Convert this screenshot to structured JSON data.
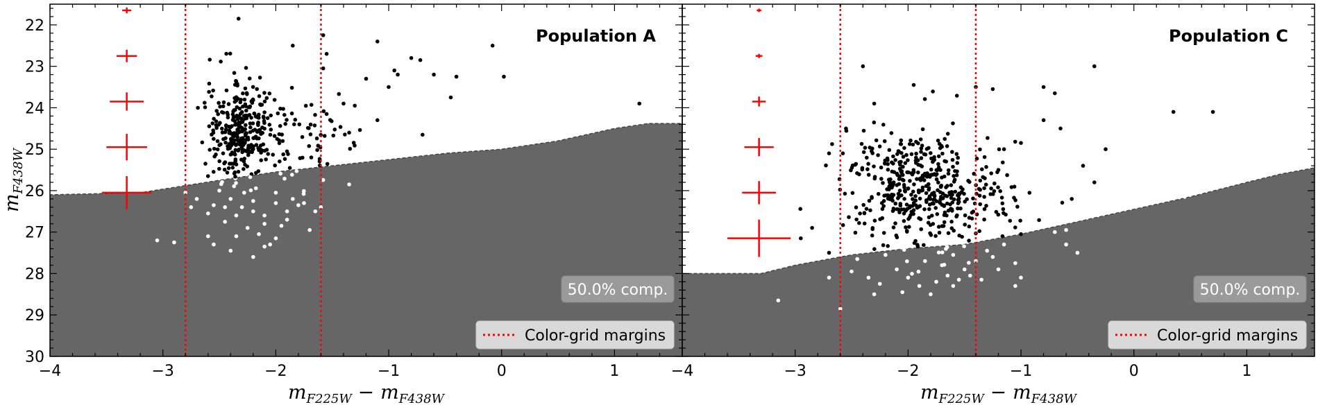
{
  "chart_data": [
    {
      "type": "scatter",
      "title": "Population A",
      "xlabel_main": "m",
      "xlabel_sub": "F225W",
      "xlabel_minus": " − ",
      "xlabel_main2": "m",
      "xlabel_sub2": "F438W",
      "ylabel_main": "m",
      "ylabel_sub": "F438W",
      "xlim": [
        -4,
        1.6
      ],
      "ylim": [
        30,
        21.5
      ],
      "xticks": [
        -4,
        -3,
        -2,
        -1,
        0,
        1
      ],
      "xtick_labels": [
        "−4",
        "−3",
        "−2",
        "−1",
        "0",
        "1"
      ],
      "yticks": [
        22,
        23,
        24,
        25,
        26,
        27,
        28,
        29,
        30
      ],
      "ytick_labels": [
        "22",
        "23",
        "24",
        "25",
        "26",
        "27",
        "28",
        "29",
        "30"
      ],
      "color_grid_margins": [
        -2.8,
        -1.6
      ],
      "completeness_label": "50.0% comp.",
      "legend_label": "Color-grid margins",
      "completeness_curve": [
        [
          -4,
          26.1
        ],
        [
          -3.2,
          26.05
        ],
        [
          -2.5,
          25.75
        ],
        [
          -2,
          25.55
        ],
        [
          -1.5,
          25.4
        ],
        [
          -1,
          25.25
        ],
        [
          -0.5,
          25.1
        ],
        [
          0,
          25.0
        ],
        [
          0.5,
          24.8
        ],
        [
          1.0,
          24.5
        ],
        [
          1.3,
          24.38
        ],
        [
          1.6,
          24.38
        ]
      ],
      "error_bars": [
        {
          "x": -3.32,
          "y": 21.65,
          "xerr": 0.04,
          "yerr": 0.07
        },
        {
          "x": -3.32,
          "y": 22.75,
          "xerr": 0.09,
          "yerr": 0.15
        },
        {
          "x": -3.32,
          "y": 23.85,
          "xerr": 0.15,
          "yerr": 0.22
        },
        {
          "x": -3.32,
          "y": 24.95,
          "xerr": 0.18,
          "yerr": 0.32
        },
        {
          "x": -3.32,
          "y": 26.05,
          "xerr": 0.22,
          "yerr": 0.4
        }
      ],
      "cluster_core": {
        "center": [
          -2.32,
          24.55
        ],
        "spread": [
          0.14,
          0.6
        ],
        "n": 300
      },
      "cluster_tail": {
        "center": [
          -1.9,
          24.7
        ],
        "spread": [
          0.28,
          0.55
        ],
        "n": 90
      },
      "extra_points_above": [
        [
          -2.33,
          21.85
        ],
        [
          -1.85,
          22.5
        ],
        [
          -1.1,
          22.4
        ],
        [
          -0.72,
          22.85
        ],
        [
          -0.08,
          22.5
        ],
        [
          -0.8,
          22.8
        ],
        [
          -0.95,
          23.1
        ],
        [
          -1.2,
          23.3
        ],
        [
          -1.0,
          23.5
        ],
        [
          -0.92,
          23.2
        ],
        [
          -0.6,
          23.2
        ],
        [
          -0.4,
          23.25
        ],
        [
          0.02,
          23.25
        ],
        [
          -0.45,
          23.75
        ],
        [
          -0.7,
          24.65
        ],
        [
          1.22,
          23.9
        ],
        [
          -1.55,
          22.7
        ],
        [
          -1.58,
          22.25
        ],
        [
          -1.58,
          23.05
        ],
        [
          -1.4,
          23.9
        ],
        [
          -1.3,
          23.95
        ],
        [
          -1.1,
          24.3
        ],
        [
          -1.35,
          24.6
        ],
        [
          -1.55,
          24.15
        ]
      ],
      "faint_points": [
        [
          -2.5,
          26.0
        ],
        [
          -2.4,
          26.2
        ],
        [
          -2.3,
          26.4
        ],
        [
          -2.2,
          26.25
        ],
        [
          -2.1,
          26.6
        ],
        [
          -2.0,
          26.3
        ],
        [
          -1.9,
          26.5
        ],
        [
          -1.8,
          26.35
        ],
        [
          -2.25,
          26.9
        ],
        [
          -2.15,
          27.05
        ],
        [
          -2.05,
          27.3
        ],
        [
          -2.35,
          27.1
        ],
        [
          -2.6,
          26.55
        ],
        [
          -2.7,
          26.2
        ],
        [
          -2.9,
          27.25
        ],
        [
          -3.05,
          27.2
        ],
        [
          -2.55,
          27.3
        ],
        [
          -2.2,
          27.6
        ],
        [
          -2.1,
          27.35
        ],
        [
          -1.95,
          26.85
        ],
        [
          -1.7,
          26.95
        ],
        [
          -1.6,
          26.4
        ],
        [
          -1.35,
          25.85
        ],
        [
          -2.45,
          26.75
        ],
        [
          -2.28,
          26.05
        ],
        [
          -2.0,
          26.05
        ],
        [
          -1.85,
          26.2
        ],
        [
          -2.6,
          27.1
        ],
        [
          -2.35,
          26.6
        ],
        [
          -1.75,
          26.3
        ],
        [
          -2.1,
          26.8
        ],
        [
          -2.75,
          26.4
        ],
        [
          -2.4,
          27.45
        ],
        [
          -2.0,
          27.15
        ],
        [
          -1.9,
          26.7
        ],
        [
          -2.55,
          26.35
        ],
        [
          -1.65,
          26.5
        ],
        [
          -2.2,
          26.5
        ],
        [
          -2.45,
          26.4
        ],
        [
          -2.8,
          26.05
        ]
      ]
    },
    {
      "type": "scatter",
      "title": "Population C",
      "xlabel_main": "m",
      "xlabel_sub": "F225W",
      "xlabel_minus": " − ",
      "xlabel_main2": "m",
      "xlabel_sub2": "F438W",
      "xlim": [
        -4,
        1.6
      ],
      "ylim": [
        30,
        21.5
      ],
      "xticks": [
        -4,
        -3,
        -2,
        -1,
        0,
        1
      ],
      "xtick_labels": [
        "−4",
        "−3",
        "−2",
        "−1",
        "0",
        "1"
      ],
      "color_grid_margins": [
        -2.6,
        -1.4
      ],
      "completeness_label": "50.0% comp.",
      "legend_label": "Color-grid margins",
      "completeness_curve": [
        [
          -4,
          28.0
        ],
        [
          -3.3,
          28.0
        ],
        [
          -3.0,
          27.8
        ],
        [
          -2.5,
          27.55
        ],
        [
          -2,
          27.4
        ],
        [
          -1.5,
          27.3
        ],
        [
          -1,
          27.05
        ],
        [
          -0.5,
          26.75
        ],
        [
          0,
          26.45
        ],
        [
          0.5,
          26.15
        ],
        [
          1.0,
          25.8
        ],
        [
          1.3,
          25.6
        ],
        [
          1.6,
          25.45
        ]
      ],
      "error_bars": [
        {
          "x": -3.32,
          "y": 21.65,
          "xerr": 0.02,
          "yerr": 0.04
        },
        {
          "x": -3.32,
          "y": 22.75,
          "xerr": 0.03,
          "yerr": 0.05
        },
        {
          "x": -3.32,
          "y": 23.85,
          "xerr": 0.06,
          "yerr": 0.12
        },
        {
          "x": -3.32,
          "y": 24.95,
          "xerr": 0.13,
          "yerr": 0.22
        },
        {
          "x": -3.32,
          "y": 26.05,
          "xerr": 0.15,
          "yerr": 0.28
        },
        {
          "x": -3.32,
          "y": 27.15,
          "xerr": 0.28,
          "yerr": 0.45
        }
      ],
      "cluster_core": {
        "center": [
          -1.98,
          25.95
        ],
        "spread": [
          0.28,
          0.7
        ],
        "n": 380
      },
      "cluster_tail": {
        "center": [
          -1.5,
          26.2
        ],
        "spread": [
          0.3,
          0.7
        ],
        "n": 110
      },
      "extra_points_above": [
        [
          -2.4,
          23.0
        ],
        [
          -1.95,
          23.45
        ],
        [
          -1.4,
          23.5
        ],
        [
          -1.25,
          23.55
        ],
        [
          -0.8,
          23.5
        ],
        [
          -0.7,
          23.65
        ],
        [
          -0.35,
          23.0
        ],
        [
          -0.8,
          24.3
        ],
        [
          -0.65,
          24.5
        ],
        [
          -0.25,
          25.0
        ],
        [
          0.35,
          24.1
        ],
        [
          0.7,
          24.1
        ],
        [
          -0.45,
          25.4
        ],
        [
          -0.35,
          25.8
        ],
        [
          -0.55,
          26.2
        ],
        [
          -1.0,
          24.85
        ],
        [
          -1.15,
          25.0
        ],
        [
          -1.2,
          25.5
        ],
        [
          -2.3,
          23.9
        ],
        [
          -2.55,
          24.5
        ],
        [
          -2.7,
          25.1
        ],
        [
          -2.85,
          26.9
        ],
        [
          -2.95,
          27.15
        ],
        [
          -2.7,
          27.5
        ],
        [
          -0.6,
          27.3
        ],
        [
          -0.5,
          27.5
        ],
        [
          -1.0,
          27.05
        ]
      ],
      "faint_points": [
        [
          -3.15,
          28.65
        ],
        [
          -2.6,
          28.85
        ],
        [
          -2.35,
          28.1
        ],
        [
          -2.3,
          28.5
        ],
        [
          -2.1,
          27.9
        ],
        [
          -2.0,
          28.1
        ],
        [
          -1.9,
          28.3
        ],
        [
          -1.85,
          27.7
        ],
        [
          -1.75,
          28.2
        ],
        [
          -1.7,
          27.8
        ],
        [
          -1.65,
          28.05
        ],
        [
          -1.6,
          27.55
        ],
        [
          -1.55,
          28.15
        ],
        [
          -1.5,
          27.9
        ],
        [
          -1.45,
          28.05
        ],
        [
          -1.4,
          27.7
        ],
        [
          -1.35,
          28.15
        ],
        [
          -1.25,
          27.6
        ],
        [
          -1.2,
          27.9
        ],
        [
          -1.05,
          27.75
        ],
        [
          -1.0,
          28.1
        ],
        [
          -1.05,
          28.3
        ],
        [
          -1.3,
          27.45
        ],
        [
          -1.15,
          27.3
        ],
        [
          -0.7,
          27.0
        ],
        [
          -0.6,
          26.95
        ],
        [
          0.45,
          26.15
        ],
        [
          -2.45,
          27.65
        ],
        [
          -2.2,
          27.55
        ],
        [
          -2.5,
          27.95
        ],
        [
          -2.7,
          28.1
        ],
        [
          -1.8,
          28.5
        ],
        [
          -2.05,
          28.45
        ],
        [
          -1.6,
          28.3
        ],
        [
          -2.25,
          28.25
        ]
      ]
    }
  ]
}
